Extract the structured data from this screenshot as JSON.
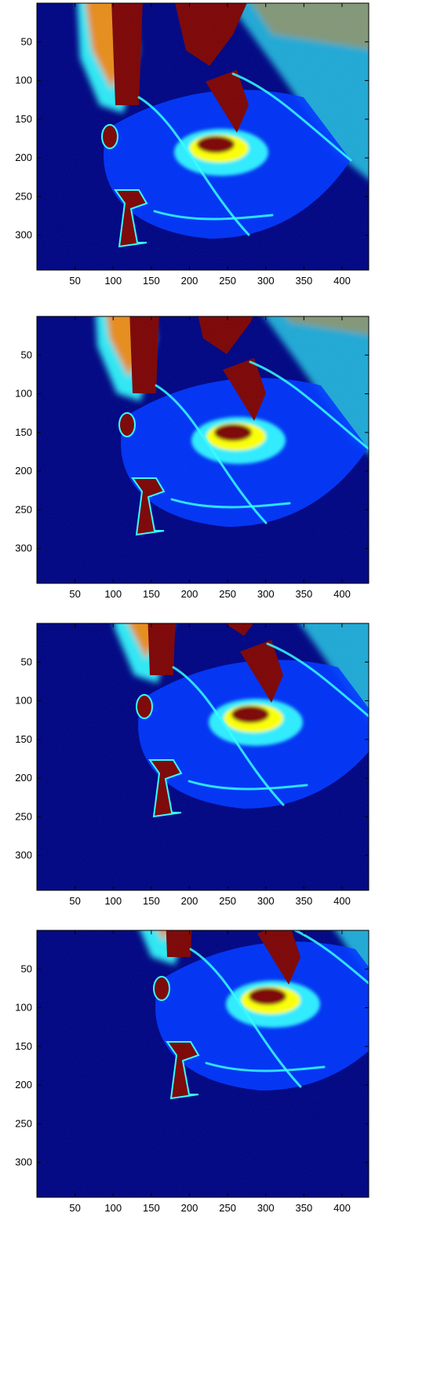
{
  "colors": {
    "deep_blue": "#00007f",
    "blue": "#0033ff",
    "cyan": "#33ffff",
    "yellow": "#ffff00",
    "orange": "#ff7f00",
    "dark_red": "#7f0000",
    "axes_border": "#000000"
  },
  "chart_data": [
    {
      "type": "heatmap",
      "colormap": "jet",
      "title": "",
      "xlabel": "",
      "ylabel": "",
      "xlim": [
        0,
        435
      ],
      "ylim": [
        345,
        0
      ],
      "xticks": [
        "50",
        "100",
        "150",
        "200",
        "250",
        "300",
        "350",
        "400"
      ],
      "yticks": [
        "50",
        "100",
        "150",
        "200",
        "250",
        "300"
      ],
      "shift": 0
    },
    {
      "type": "heatmap",
      "colormap": "jet",
      "title": "",
      "xlabel": "",
      "ylabel": "",
      "xlim": [
        0,
        435
      ],
      "ylim": [
        345,
        0
      ],
      "xticks": [
        "50",
        "100",
        "150",
        "200",
        "250",
        "300",
        "350",
        "400"
      ],
      "yticks": [
        "50",
        "100",
        "150",
        "200",
        "250",
        "300"
      ],
      "shift": 1
    },
    {
      "type": "heatmap",
      "colormap": "jet",
      "title": "",
      "xlabel": "",
      "ylabel": "",
      "xlim": [
        0,
        435
      ],
      "ylim": [
        345,
        0
      ],
      "xticks": [
        "50",
        "100",
        "150",
        "200",
        "250",
        "300",
        "350",
        "400"
      ],
      "yticks": [
        "50",
        "100",
        "150",
        "200",
        "250",
        "300"
      ],
      "shift": 2
    },
    {
      "type": "heatmap",
      "colormap": "jet",
      "title": "",
      "xlabel": "",
      "ylabel": "",
      "xlim": [
        0,
        435
      ],
      "ylim": [
        345,
        0
      ],
      "xticks": [
        "50",
        "100",
        "150",
        "200",
        "250",
        "300",
        "350",
        "400"
      ],
      "yticks": [
        "50",
        "100",
        "150",
        "200",
        "250",
        "300"
      ],
      "shift": 3
    }
  ]
}
